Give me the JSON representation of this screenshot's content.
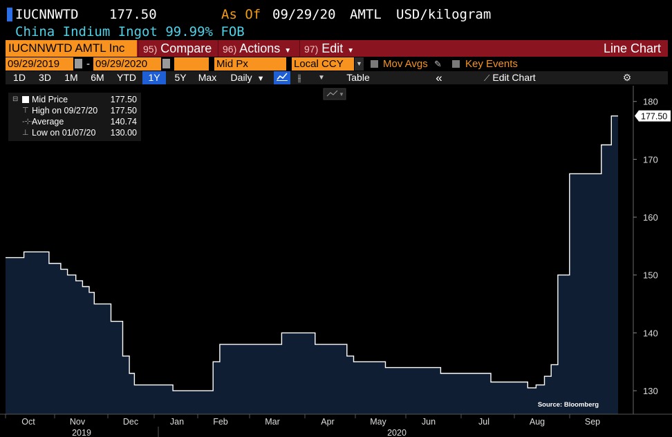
{
  "header": {
    "ticker": "IUCNNWTD",
    "price": "177.50",
    "as_of_label": "As Of",
    "as_of_date": "09/29/20",
    "source": "AMTL",
    "unit": "USD/kilogram",
    "description": "China Indium Ingot 99.99% FOB"
  },
  "toolbar": {
    "security": "IUCNNWTD AMTL Inc",
    "menus": [
      {
        "num": "95)",
        "label": "Compare"
      },
      {
        "num": "96)",
        "label": "Actions"
      },
      {
        "num": "97)",
        "label": "Edit"
      }
    ],
    "chart_type": "Line Chart"
  },
  "params": {
    "start_date": "09/29/2019",
    "end_date": "09/29/2020",
    "dash": "-",
    "field": "Mid Px",
    "currency": "Local CCY",
    "mov_avgs": "Mov Avgs",
    "key_events": "Key Events"
  },
  "ranges": {
    "items": [
      "1D",
      "3D",
      "1M",
      "6M",
      "YTD",
      "1Y",
      "5Y",
      "Max"
    ],
    "selected": "1Y",
    "frequency": "Daily",
    "table": "Table",
    "edit_chart": "Edit Chart"
  },
  "legend": {
    "mid_label": "Mid Price",
    "mid_value": "177.50",
    "high_label": "High on 09/27/20",
    "high_value": "177.50",
    "avg_label": "Average",
    "avg_value": "140.74",
    "low_label": "Low on 01/07/20",
    "low_value": "130.00"
  },
  "colors": {
    "accent_orange": "#f7931e",
    "toolbar_red": "#8a1420",
    "area_fill": "#0f1e33",
    "line": "#ffffff",
    "selected_blue": "#1f5fd6"
  },
  "chart_data": {
    "type": "area",
    "series": [
      {
        "name": "Mid Price",
        "x": [
          "2019-09-29",
          "2019-10-01",
          "2019-10-10",
          "2019-10-20",
          "2019-10-25",
          "2019-11-01",
          "2019-11-05",
          "2019-11-10",
          "2019-11-14",
          "2019-11-18",
          "2019-11-21",
          "2019-11-26",
          "2019-12-01",
          "2019-12-08",
          "2019-12-12",
          "2019-12-15",
          "2020-01-07",
          "2020-01-15",
          "2020-01-27",
          "2020-01-31",
          "2020-02-04",
          "2020-02-15",
          "2020-02-26",
          "2020-03-12",
          "2020-03-19",
          "2020-04-01",
          "2020-04-10",
          "2020-04-20",
          "2020-04-24",
          "2020-05-08",
          "2020-05-13",
          "2020-06-01",
          "2020-06-15",
          "2020-07-01",
          "2020-07-15",
          "2020-07-24",
          "2020-08-01",
          "2020-08-06",
          "2020-08-11",
          "2020-08-16",
          "2020-08-20",
          "2020-08-24",
          "2020-08-31",
          "2020-09-15",
          "2020-09-19",
          "2020-09-22",
          "2020-09-25",
          "2020-09-27",
          "2020-09-29"
        ],
        "values": [
          153,
          153,
          154,
          154,
          152,
          151,
          150,
          149,
          148,
          147,
          145,
          145,
          142,
          136,
          133,
          131,
          130,
          130,
          130,
          135,
          138,
          138,
          138,
          140,
          140,
          138,
          138,
          136,
          135,
          135,
          134,
          134,
          133,
          133,
          131.5,
          131.5,
          131.5,
          130.5,
          131,
          132.5,
          134.5,
          150,
          167.5,
          167.5,
          172.5,
          172.5,
          177.5,
          177.5,
          177.5
        ]
      }
    ],
    "xlabel": "",
    "ylabel": "",
    "x_ticks": [
      "Oct",
      "Nov",
      "Dec",
      "Jan",
      "Feb",
      "Mar",
      "Apr",
      "May",
      "Jun",
      "Jul",
      "Aug",
      "Sep"
    ],
    "x_years": [
      "2019",
      "2020"
    ],
    "y_ticks": [
      130,
      140,
      150,
      160,
      170,
      180
    ],
    "ylim": [
      127.5,
      182
    ],
    "last_value_label": "177.50",
    "source_note": "Source: Bloomberg",
    "grid": false
  }
}
